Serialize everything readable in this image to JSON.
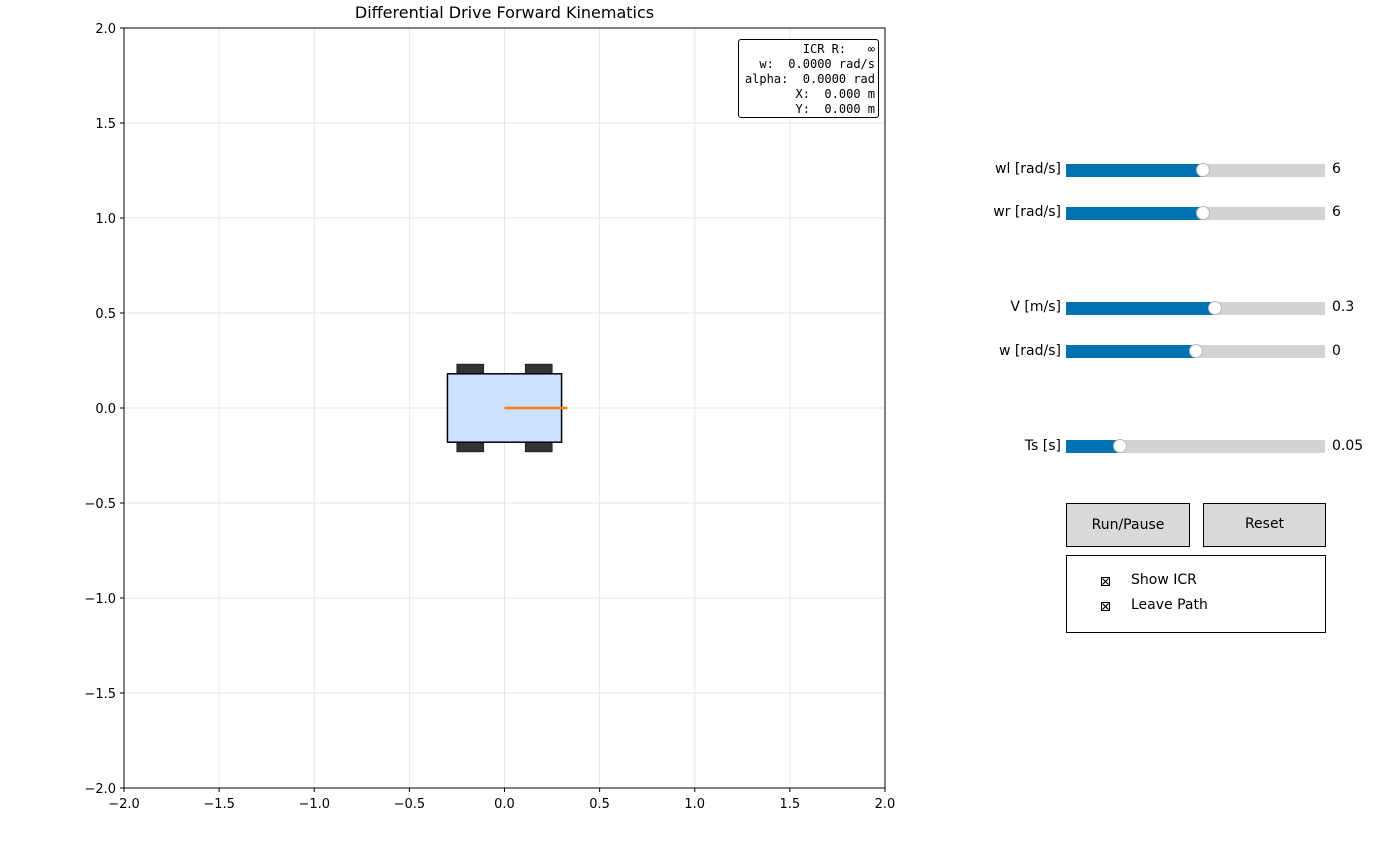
{
  "plot": {
    "title": "Differential Drive Forward Kinematics",
    "x_ticks": [
      "−2.0",
      "−1.5",
      "−1.0",
      "−0.5",
      "0.0",
      "0.5",
      "1.0",
      "1.5",
      "2.0"
    ],
    "y_ticks": [
      "2.0",
      "1.5",
      "1.0",
      "0.5",
      "0.0",
      "−0.5",
      "−1.0",
      "−1.5",
      "−2.0"
    ],
    "xlim": [
      -2.0,
      2.0
    ],
    "ylim": [
      -2.0,
      2.0
    ],
    "grid": true,
    "robot": {
      "x": 0.0,
      "y": 0.0,
      "heading_rad": 0.0,
      "body_half_length": 0.3,
      "body_half_width": 0.18,
      "body_color": "#cce0ff",
      "wheel_color": "#333333",
      "heading_color": "#ff7f0e"
    }
  },
  "info": {
    "icr": "ICR R:   ∞",
    "w": "w:  0.0000 rad/s",
    "alpha": "alpha:  0.0000 rad",
    "x": "X:  0.000 m",
    "y": "Y:  0.000 m"
  },
  "sliders": [
    {
      "label": "wl [rad/s]",
      "value_text": "6",
      "fraction": 0.53
    },
    {
      "label": "wr [rad/s]",
      "value_text": "6",
      "fraction": 0.53
    },
    {
      "label": "V [m/s]",
      "value_text": "0.3",
      "fraction": 0.575
    },
    {
      "label": "w [rad/s]",
      "value_text": "0",
      "fraction": 0.5
    },
    {
      "label": "Ts [s]",
      "value_text": "0.05",
      "fraction": 0.21
    }
  ],
  "buttons": {
    "run_pause": "Run/Pause",
    "reset": "Reset"
  },
  "checkboxes": [
    {
      "label": "Show ICR",
      "checked": true
    },
    {
      "label": "Leave Path",
      "checked": true
    }
  ],
  "colors": {
    "slider_fill": "#0072b2",
    "slider_track": "#d3d3d3",
    "button_bg": "#d9d9d9"
  }
}
